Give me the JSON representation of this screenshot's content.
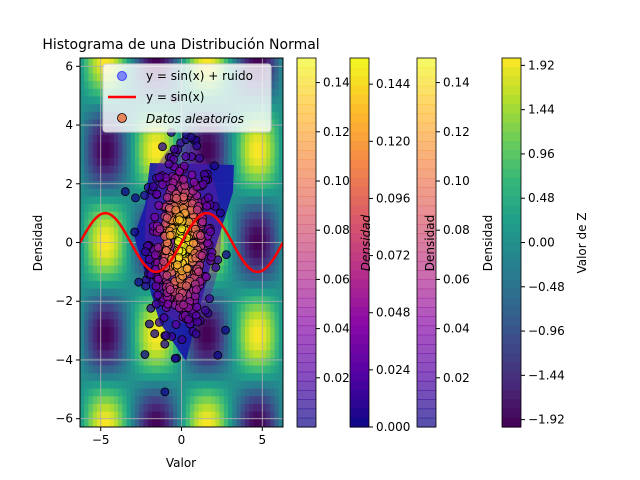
{
  "chart_data": {
    "type": "scatter",
    "title": "Histograma de una Distribución Normal",
    "xlabel": "Valor",
    "ylabel": "Densidad",
    "xlim": [
      -6.283,
      6.283
    ],
    "ylim": [
      -6.283,
      6.283
    ],
    "xticks": [
      -5,
      0,
      5
    ],
    "yticks": [
      -6,
      -4,
      -2,
      0,
      2,
      4,
      6
    ],
    "grid": true,
    "legend": {
      "placement": "top-center",
      "entries": [
        {
          "label": "y = sin(x) + ruido",
          "kind": "dot",
          "color": "#4040ff"
        },
        {
          "label": "y = sin(x)",
          "kind": "line",
          "color": "#ff0000"
        },
        {
          "label": "Datos aleatorios",
          "kind": "dot",
          "color": "#e8845a",
          "italic": true
        }
      ]
    },
    "background_contour": {
      "function": "sin(x)*cos(y)",
      "range": [
        -2,
        2
      ],
      "colormap": "viridis"
    },
    "series": [
      {
        "name": "y = sin(x)",
        "kind": "line",
        "color": "#ff0000",
        "function": "sin(x)",
        "x_range": [
          -6.283,
          6.283
        ]
      },
      {
        "name": "Datos aleatorios",
        "kind": "scatter",
        "distribution": "normal",
        "n": 500,
        "mean": [
          0,
          0
        ],
        "std": [
          1,
          1.5
        ],
        "colormap": "plasma"
      }
    ],
    "colorbars": [
      {
        "label": "",
        "colormap": "plasma",
        "alpha": 0.7,
        "ticks": [
          "0.02",
          "0.04",
          "0.06",
          "0.08",
          "0.10",
          "0.12",
          "0.14"
        ],
        "range": [
          0,
          0.15
        ]
      },
      {
        "label": "Densidad",
        "italic": true,
        "colormap": "plasma",
        "alpha": 1,
        "ticks": [
          "0.000",
          "0.024",
          "0.048",
          "0.072",
          "0.096",
          "0.120",
          "0.144"
        ],
        "range": [
          0,
          0.155
        ]
      },
      {
        "label": "Densidad",
        "colormap": "plasma",
        "alpha": 0.7,
        "ticks": [
          "0.02",
          "0.04",
          "0.06",
          "0.08",
          "0.10",
          "0.12",
          "0.14"
        ],
        "range": [
          0,
          0.15
        ]
      },
      {
        "label": "Densidad",
        "colormap": "none",
        "ticks": [],
        "range": [
          0,
          1
        ]
      },
      {
        "label": "Valor de Z",
        "colormap": "viridis",
        "alpha": 1,
        "ticks": [
          "-1.92",
          "-1.44",
          "-0.96",
          "-0.48",
          "0.00",
          "0.48",
          "0.96",
          "1.44",
          "1.92"
        ],
        "range": [
          -2,
          2
        ]
      }
    ]
  }
}
